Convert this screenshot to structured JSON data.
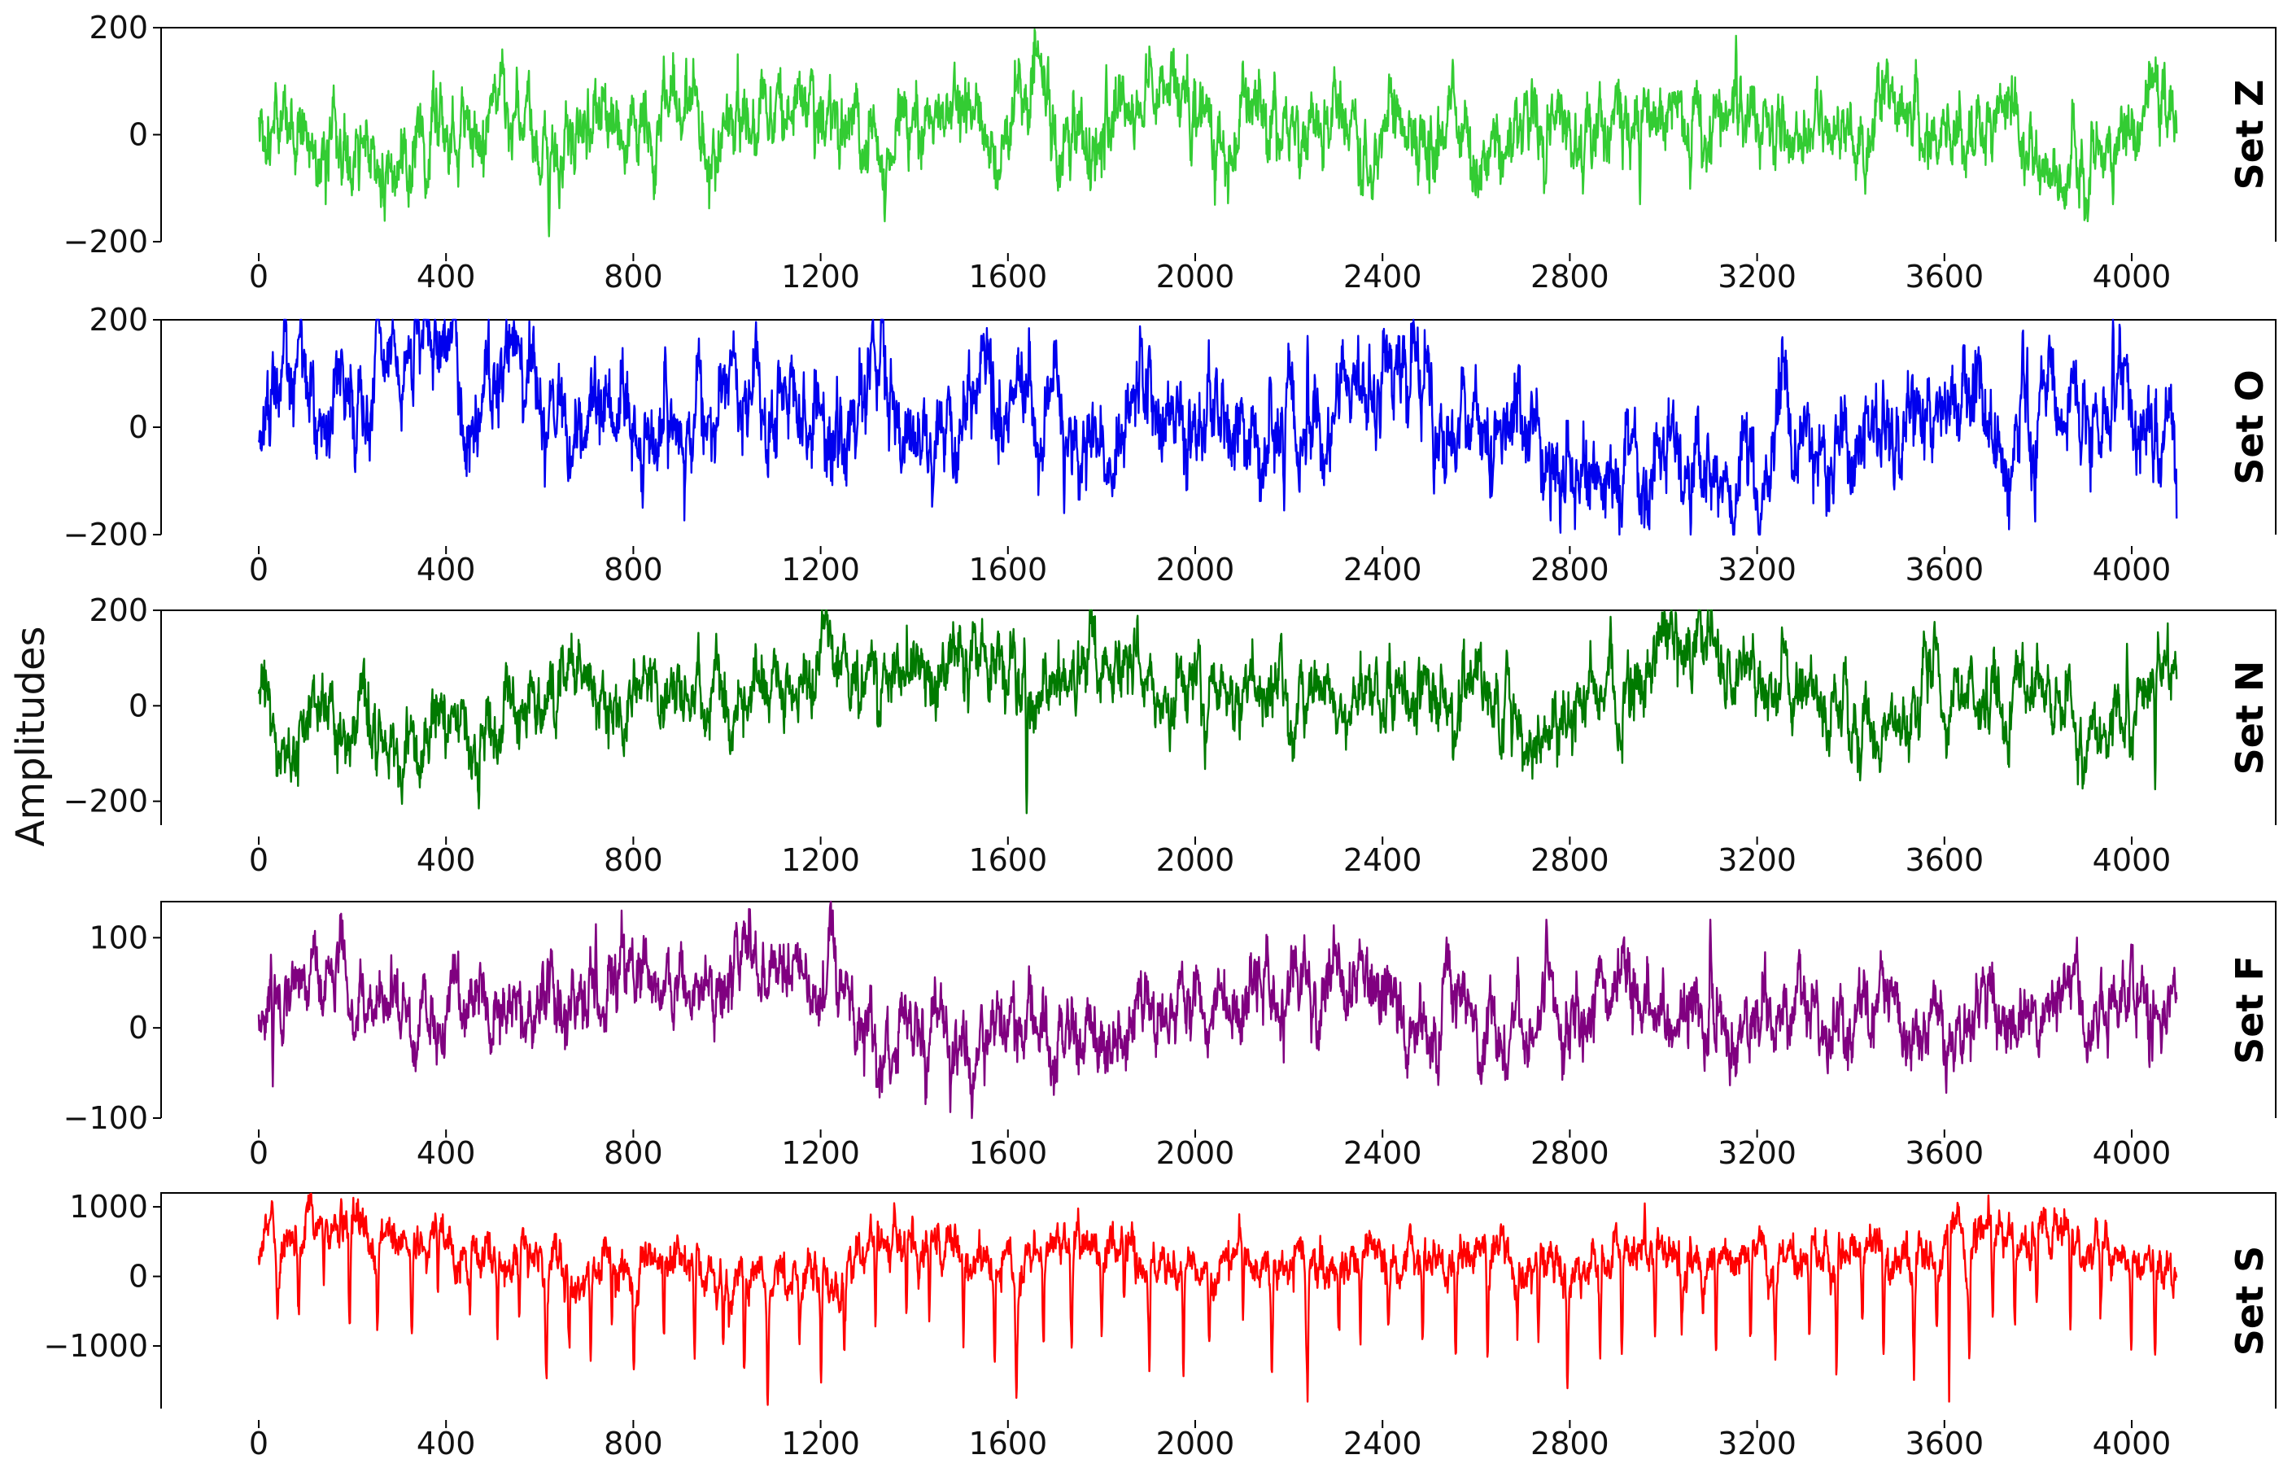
{
  "figure": {
    "ylabel": "Amplitudes"
  },
  "chart_data": [
    {
      "type": "line",
      "panel_label": "Set Z",
      "color": "#33cc33",
      "samples": 4097,
      "xlim": [
        0,
        4097
      ],
      "ylim": [
        -200,
        200
      ],
      "x_ticks": [
        0,
        400,
        800,
        1200,
        1600,
        2000,
        2400,
        2800,
        3200,
        3600,
        4000
      ],
      "y_ticks": [
        200,
        0,
        -200
      ],
      "y_tick_labels": [
        "200",
        "0",
        "−200"
      ],
      "baseline": 0,
      "noise_amplitude": 45,
      "extremes": [
        [
          30,
          10
        ],
        [
          620,
          -190
        ],
        [
          1810,
          130
        ],
        [
          2550,
          140
        ],
        [
          2950,
          -130
        ],
        [
          3155,
          185
        ],
        [
          3960,
          -130
        ]
      ],
      "seed": 11
    },
    {
      "type": "line",
      "panel_label": "Set O",
      "color": "#0000ee",
      "samples": 4097,
      "xlim": [
        0,
        4097
      ],
      "ylim": [
        -200,
        200
      ],
      "x_ticks": [
        0,
        400,
        800,
        1200,
        1600,
        2000,
        2400,
        2800,
        3200,
        3600,
        4000
      ],
      "y_ticks": [
        200,
        0,
        -200
      ],
      "y_tick_labels": [
        "200",
        "0",
        "−200"
      ],
      "baseline": 0,
      "noise_amplitude": 55,
      "extremes": [
        [
          30,
          140
        ],
        [
          820,
          -150
        ],
        [
          1720,
          -160
        ],
        [
          2190,
          -155
        ],
        [
          2240,
          170
        ],
        [
          2790,
          -140
        ],
        [
          3960,
          220
        ]
      ],
      "seed": 23
    },
    {
      "type": "line",
      "panel_label": "Set N",
      "color": "#007a00",
      "samples": 4097,
      "xlim": [
        0,
        4097
      ],
      "ylim": [
        -250,
        200
      ],
      "x_ticks": [
        0,
        400,
        800,
        1200,
        1600,
        2000,
        2400,
        2800,
        3200,
        3600,
        4000
      ],
      "y_ticks": [
        200,
        0,
        -200
      ],
      "y_tick_labels": [
        "200",
        "0",
        "−200"
      ],
      "baseline": 0,
      "noise_amplitude": 45,
      "extremes": [
        [
          470,
          -215
        ],
        [
          1640,
          -225
        ],
        [
          1680,
          110
        ],
        [
          3990,
          130
        ],
        [
          4050,
          -175
        ]
      ],
      "seed": 37
    },
    {
      "type": "line",
      "panel_label": "Set F",
      "color": "#800080",
      "samples": 4097,
      "xlim": [
        0,
        4097
      ],
      "ylim": [
        -100,
        140
      ],
      "x_ticks": [
        0,
        400,
        800,
        1200,
        1600,
        2000,
        2400,
        2800,
        3200,
        3600,
        4000
      ],
      "y_ticks": [
        100,
        0,
        -100
      ],
      "y_tick_labels": [
        "100",
        "0",
        "−100"
      ],
      "baseline": 20,
      "noise_amplitude": 25,
      "extremes": [
        [
          30,
          -65
        ],
        [
          720,
          115
        ],
        [
          2750,
          120
        ],
        [
          3100,
          120
        ]
      ],
      "seed": 51
    },
    {
      "type": "line",
      "panel_label": "Set S",
      "color": "#ff0000",
      "samples": 4097,
      "xlim": [
        0,
        4097
      ],
      "ylim": [
        -1900,
        1200
      ],
      "x_ticks": [
        0,
        400,
        800,
        1200,
        1600,
        2000,
        2400,
        2800,
        3200,
        3600,
        4000
      ],
      "y_ticks": [
        1000,
        0,
        -1000
      ],
      "y_tick_labels": [
        "1000",
        "0",
        "−1000"
      ],
      "baseline": 300,
      "noise_amplitude": 200,
      "spike_depth": -1200,
      "extremes": [
        [
          2960,
          1050
        ],
        [
          2240,
          -1800
        ],
        [
          3610,
          -1800
        ]
      ],
      "seed": 67
    }
  ]
}
